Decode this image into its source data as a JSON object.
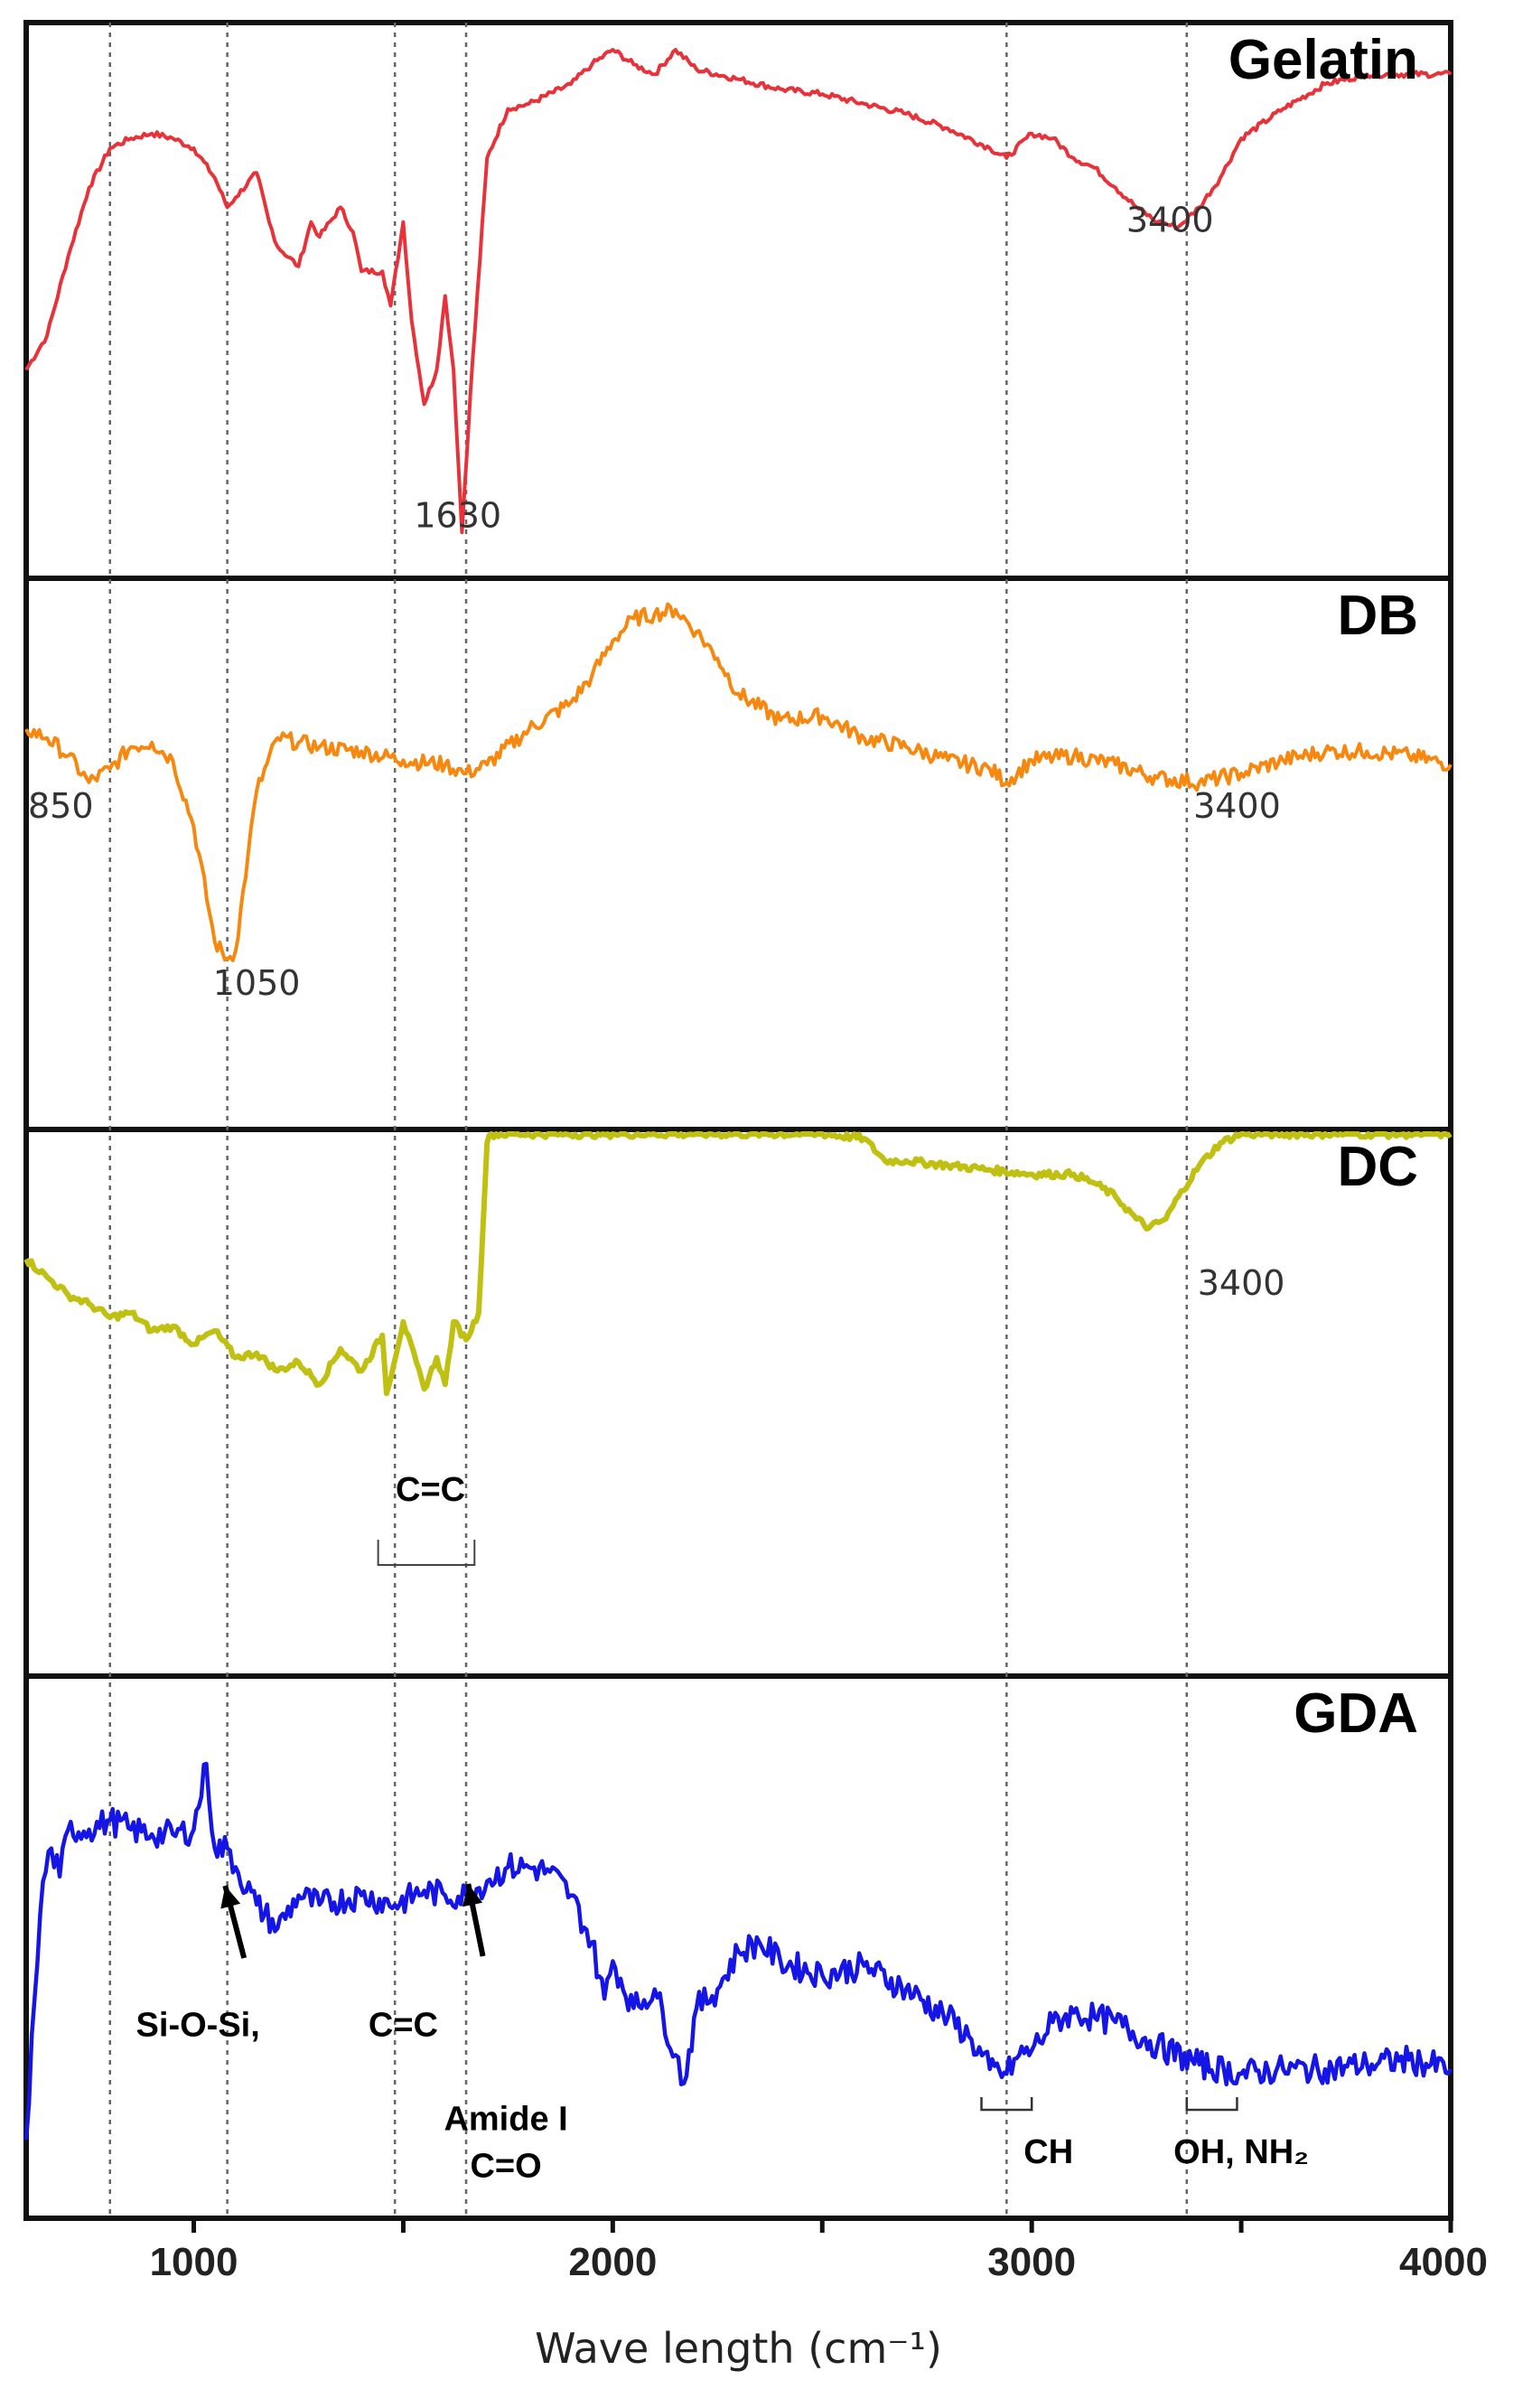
{
  "chart_data": {
    "type": "line",
    "xlabel": "Wave length (cm⁻¹)",
    "xlim": [
      600,
      4000
    ],
    "x_ticks": [
      "1000",
      "2000",
      "3000",
      "4000"
    ],
    "reference_lines_x": [
      800,
      1080,
      1480,
      1650,
      2940,
      3370
    ],
    "colors": {
      "Gelatin": "#e8323a",
      "DB": "#f7880f",
      "DC": "#c0c013",
      "GDA": "#1515e6"
    },
    "panels": [
      {
        "title": "Gelatin",
        "labels": [
          {
            "text": "3400",
            "x": 3330,
            "y": 0.63
          },
          {
            "text": "1630",
            "x": 1630,
            "y": 0.03
          }
        ],
        "series": [
          {
            "x": [
              600,
              650,
              700,
              750,
              800,
              850,
              900,
              950,
              1000,
              1050,
              1080,
              1100,
              1150,
              1180,
              1200,
              1250,
              1280,
              1300,
              1350,
              1380,
              1400,
              1450,
              1470,
              1500,
              1520,
              1550,
              1580,
              1600,
              1620,
              1640,
              1660,
              1700,
              1750,
              1800,
              1900,
              1950,
              2000,
              2050,
              2100,
              2150,
              2200,
              2300,
              2400,
              2500,
              2600,
              2700,
              2800,
              2900,
              2940,
              3000,
              3050,
              3100,
              3150,
              3200,
              3250,
              3300,
              3350,
              3400,
              3450,
              3500,
              3600,
              3700,
              3800,
              3900,
              4000
            ],
            "y": [
              0.35,
              0.42,
              0.58,
              0.72,
              0.8,
              0.82,
              0.83,
              0.82,
              0.8,
              0.74,
              0.68,
              0.7,
              0.75,
              0.65,
              0.6,
              0.56,
              0.65,
              0.62,
              0.68,
              0.63,
              0.55,
              0.55,
              0.48,
              0.65,
              0.45,
              0.28,
              0.35,
              0.5,
              0.35,
              0.02,
              0.3,
              0.78,
              0.88,
              0.89,
              0.93,
              0.97,
              1.0,
              0.97,
              0.95,
              1.0,
              0.96,
              0.94,
              0.92,
              0.91,
              0.89,
              0.87,
              0.84,
              0.8,
              0.78,
              0.83,
              0.82,
              0.78,
              0.76,
              0.72,
              0.68,
              0.65,
              0.64,
              0.68,
              0.74,
              0.82,
              0.88,
              0.93,
              0.95,
              0.95,
              0.95
            ]
          }
        ]
      },
      {
        "title": "DB",
        "labels": [
          {
            "text": "850",
            "x": 800,
            "y": 0.5
          },
          {
            "text": "3400",
            "x": 3490,
            "y": 0.5
          },
          {
            "text": "1050",
            "x": 1150,
            "y": 0.1
          }
        ],
        "series": [
          {
            "x": [
              600,
              650,
              700,
              750,
              800,
              850,
              900,
              950,
              1000,
              1050,
              1080,
              1100,
              1130,
              1150,
              1200,
              1250,
              1300,
              1400,
              1500,
              1600,
              1650,
              1700,
              1800,
              1900,
              1950,
              2000,
              2050,
              2100,
              2150,
              2200,
              2250,
              2300,
              2400,
              2500,
              2600,
              2700,
              2800,
              2900,
              2940,
              3000,
              3100,
              3200,
              3300,
              3400,
              3500,
              3600,
              3700,
              3800,
              3900,
              4000
            ],
            "y": [
              0.7,
              0.68,
              0.64,
              0.58,
              0.61,
              0.66,
              0.67,
              0.63,
              0.48,
              0.22,
              0.18,
              0.2,
              0.42,
              0.56,
              0.68,
              0.67,
              0.66,
              0.65,
              0.63,
              0.62,
              0.6,
              0.62,
              0.7,
              0.76,
              0.82,
              0.9,
              0.95,
              0.96,
              0.97,
              0.92,
              0.86,
              0.78,
              0.72,
              0.73,
              0.68,
              0.66,
              0.63,
              0.61,
              0.58,
              0.63,
              0.64,
              0.62,
              0.59,
              0.58,
              0.6,
              0.63,
              0.65,
              0.65,
              0.64,
              0.62
            ]
          }
        ]
      },
      {
        "title": "DC",
        "labels": [
          {
            "text": "3400",
            "x": 3500,
            "y": 0.64
          },
          {
            "text": "C=C",
            "x": 1565,
            "y": 0.18
          }
        ],
        "series": [
          {
            "x": [
              600,
              650,
              700,
              750,
              800,
              850,
              900,
              950,
              1000,
              1050,
              1100,
              1150,
              1200,
              1250,
              1300,
              1350,
              1400,
              1450,
              1460,
              1500,
              1550,
              1580,
              1600,
              1620,
              1650,
              1680,
              1700,
              1710,
              1750,
              2000,
              2500,
              2600,
              2650,
              2700,
              2800,
              2900,
              3000,
              3100,
              3150,
              3200,
              3250,
              3280,
              3320,
              3350,
              3400,
              3450,
              3500,
              3700,
              3900,
              4000
            ],
            "y": [
              0.72,
              0.68,
              0.64,
              0.62,
              0.59,
              0.6,
              0.56,
              0.57,
              0.53,
              0.56,
              0.5,
              0.51,
              0.47,
              0.49,
              0.44,
              0.52,
              0.47,
              0.55,
              0.42,
              0.58,
              0.43,
              0.5,
              0.44,
              0.58,
              0.54,
              0.6,
              0.98,
              1.0,
              1.0,
              1.0,
              1.0,
              0.99,
              0.94,
              0.94,
              0.93,
              0.92,
              0.91,
              0.91,
              0.89,
              0.86,
              0.81,
              0.79,
              0.81,
              0.86,
              0.93,
              0.98,
              1.0,
              1.0,
              1.0,
              1.0
            ]
          }
        ]
      },
      {
        "title": "GDA",
        "labels": [
          {
            "text": "Si-O-Si,",
            "x": 1010,
            "y": 0.32
          },
          {
            "text": "C=C",
            "x": 1500,
            "y": 0.32
          },
          {
            "text": "Amide I",
            "x": 1745,
            "y": 0.12
          },
          {
            "text": "C=O",
            "x": 1745,
            "y": 0.02
          },
          {
            "text": "CH",
            "x": 3040,
            "y": 0.05
          },
          {
            "text": "OH, NH₂",
            "x": 3500,
            "y": 0.05
          }
        ],
        "series": [
          {
            "x": [
              600,
              620,
              640,
              660,
              680,
              700,
              750,
              800,
              850,
              900,
              950,
              1000,
              1030,
              1050,
              1080,
              1100,
              1150,
              1200,
              1250,
              1300,
              1400,
              1480,
              1550,
              1600,
              1650,
              1700,
              1750,
              1800,
              1850,
              1900,
              1950,
              1980,
              2000,
              2050,
              2100,
              2150,
              2170,
              2200,
              2250,
              2300,
              2350,
              2400,
              2500,
              2600,
              2700,
              2800,
              2850,
              2900,
              2940,
              2970,
              3000,
              3050,
              3100,
              3150,
              3200,
              3300,
              3400,
              3500,
              3600,
              3700,
              3800,
              3900,
              4000
            ],
            "y": [
              0.1,
              0.4,
              0.65,
              0.72,
              0.66,
              0.76,
              0.76,
              0.78,
              0.76,
              0.75,
              0.75,
              0.76,
              0.9,
              0.72,
              0.72,
              0.68,
              0.6,
              0.55,
              0.62,
              0.6,
              0.62,
              0.6,
              0.63,
              0.62,
              0.62,
              0.65,
              0.68,
              0.68,
              0.67,
              0.62,
              0.52,
              0.4,
              0.48,
              0.38,
              0.42,
              0.28,
              0.22,
              0.38,
              0.42,
              0.5,
              0.52,
              0.48,
              0.45,
              0.47,
              0.42,
              0.36,
              0.32,
              0.25,
              0.24,
              0.28,
              0.29,
              0.35,
              0.37,
              0.36,
              0.35,
              0.3,
              0.26,
              0.24,
              0.25,
              0.25,
              0.26,
              0.27,
              0.25
            ]
          }
        ]
      }
    ]
  }
}
